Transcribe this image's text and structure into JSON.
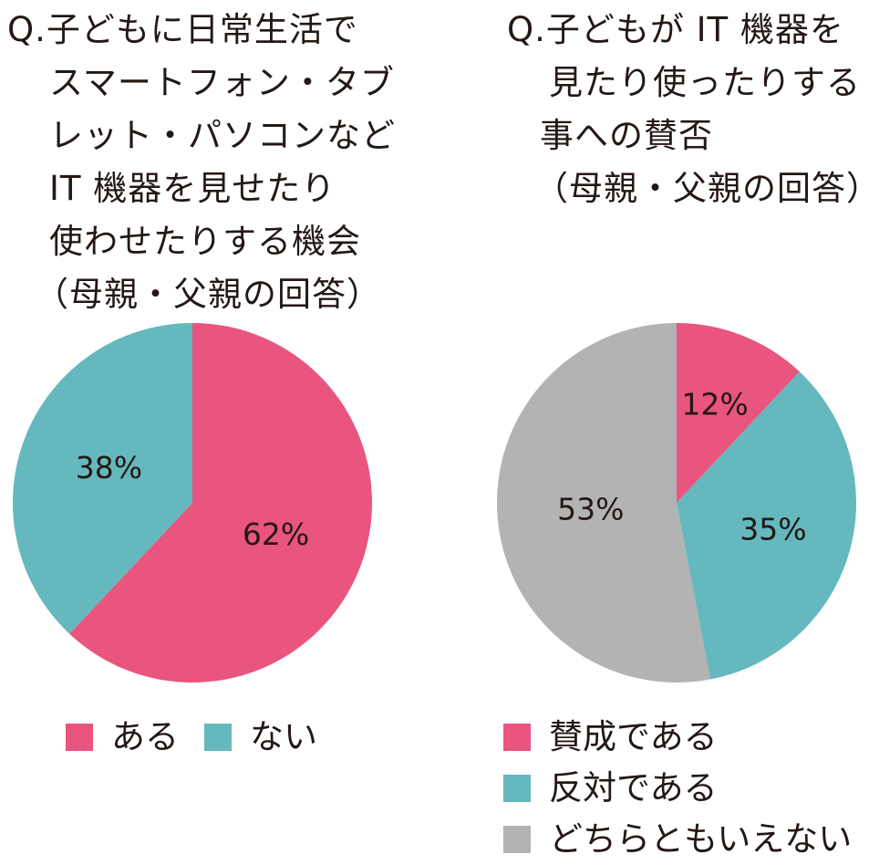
{
  "colors": {
    "pink": "#E9557F",
    "teal": "#65B8BE",
    "gray": "#B3B3B3"
  },
  "chart_data": [
    {
      "type": "pie",
      "title_lines": [
        "Q.子どもに日常生活で",
        "スマートフォン・タブ",
        "レット・パソコンなど",
        "IT 機器を見せたり",
        "使わせたりする機会",
        "（母親・父親の回答）"
      ],
      "slices": [
        {
          "label": "ある",
          "value": 62,
          "value_label": "62%",
          "color": "#E9557F"
        },
        {
          "label": "ない",
          "value": 38,
          "value_label": "38%",
          "color": "#65B8BE"
        }
      ],
      "legend_placement": "bottom"
    },
    {
      "type": "pie",
      "title_lines": [
        "Q.子どもが IT 機器を",
        "見たり使ったりする",
        "事への賛否",
        "（母親・父親の回答）"
      ],
      "slices": [
        {
          "label": "賛成である",
          "value": 12,
          "value_label": "12%",
          "color": "#E9557F"
        },
        {
          "label": "反対である",
          "value": 35,
          "value_label": "35%",
          "color": "#65B8BE"
        },
        {
          "label": "どちらともいえない",
          "value": 53,
          "value_label": "53%",
          "color": "#B3B3B3"
        }
      ],
      "legend_placement": "bottom"
    }
  ]
}
